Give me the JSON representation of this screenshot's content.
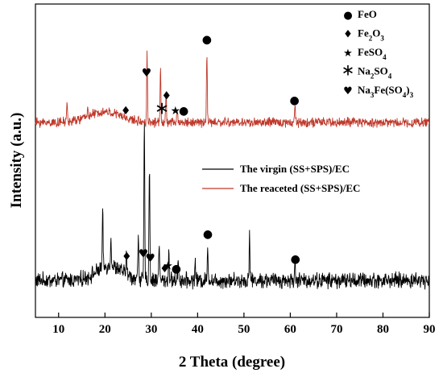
{
  "chart_data": {
    "type": "line",
    "xlabel": "2 Theta (degree)",
    "ylabel": "Intensity (a.u.)",
    "xlim": [
      5,
      90
    ],
    "x_ticks": [
      10,
      20,
      30,
      40,
      50,
      60,
      70,
      80,
      90
    ],
    "x_tick_labels": [
      "10",
      "20",
      "30",
      "40",
      "50",
      "60",
      "70",
      "80",
      "90"
    ],
    "y_ticks_shown": false,
    "grid": false,
    "legend_position": "center-right",
    "series": [
      {
        "name": "The virgin (SS+SPS)/EC",
        "color": "#000000",
        "baseline": 18,
        "noise": 4,
        "hump": {
          "center": 21,
          "width": 4,
          "height": 9
        },
        "peaks": [
          {
            "x": 19.5,
            "h": 35
          },
          {
            "x": 21.3,
            "h": 20
          },
          {
            "x": 24.6,
            "h": 14
          },
          {
            "x": 27.2,
            "h": 28
          },
          {
            "x": 28.5,
            "h": 100
          },
          {
            "x": 29.6,
            "h": 72
          },
          {
            "x": 31.7,
            "h": 26
          },
          {
            "x": 33.8,
            "h": 18
          },
          {
            "x": 35.8,
            "h": 15
          },
          {
            "x": 39.5,
            "h": 12
          },
          {
            "x": 42.2,
            "h": 22
          },
          {
            "x": 51.2,
            "h": 30
          },
          {
            "x": 61.0,
            "h": 11
          }
        ]
      },
      {
        "name": "The reaceted (SS+SPS)/EC",
        "color": "#c0392b",
        "baseline": 18,
        "noise": 4,
        "hump": {
          "center": 20,
          "width": 5,
          "height": 11
        },
        "peaks": [
          {
            "x": 11.8,
            "h": 20
          },
          {
            "x": 16.3,
            "h": 12
          },
          {
            "x": 29.1,
            "h": 72
          },
          {
            "x": 32.0,
            "h": 60
          },
          {
            "x": 33.2,
            "h": 28
          },
          {
            "x": 35.6,
            "h": 15
          },
          {
            "x": 42.0,
            "h": 75
          },
          {
            "x": 61.0,
            "h": 20
          }
        ]
      }
    ],
    "phase_legend": [
      {
        "symbol": "●",
        "icon": "circle-icon",
        "label": "FeO"
      },
      {
        "symbol": "♦",
        "icon": "diamond-icon",
        "label": "Fe2O3"
      },
      {
        "symbol": "★",
        "icon": "star-icon",
        "label": "FeSO4"
      },
      {
        "symbol": "∗",
        "icon": "asterisk-icon",
        "label": "Na2SO4"
      },
      {
        "symbol": "♥",
        "icon": "heart-icon",
        "label": "Na3Fe(SO4)3"
      }
    ],
    "peak_markers": [
      {
        "series": 1,
        "x": 24.5,
        "symbol": "♦"
      },
      {
        "series": 1,
        "x": 29.0,
        "symbol": "♥"
      },
      {
        "series": 1,
        "x": 32.3,
        "symbol": "∗"
      },
      {
        "series": 1,
        "x": 33.3,
        "symbol": "♦"
      },
      {
        "series": 1,
        "x": 35.2,
        "symbol": "★"
      },
      {
        "series": 1,
        "x": 37.0,
        "symbol": "●"
      },
      {
        "series": 1,
        "x": 42.0,
        "symbol": "●"
      },
      {
        "series": 1,
        "x": 60.9,
        "symbol": "●"
      },
      {
        "series": 0,
        "x": 28.3,
        "symbol": "♥"
      },
      {
        "series": 0,
        "x": 29.8,
        "symbol": "♥"
      },
      {
        "series": 0,
        "x": 24.7,
        "symbol": "♦"
      },
      {
        "series": 0,
        "x": 32.9,
        "symbol": "♦"
      },
      {
        "series": 0,
        "x": 33.6,
        "symbol": "★"
      },
      {
        "series": 0,
        "x": 35.4,
        "symbol": "●"
      },
      {
        "series": 0,
        "x": 42.2,
        "symbol": "●"
      },
      {
        "series": 0,
        "x": 61.1,
        "symbol": "●"
      }
    ]
  }
}
